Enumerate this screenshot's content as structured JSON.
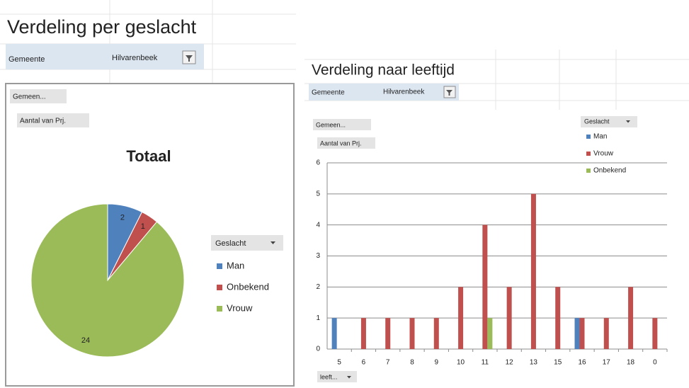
{
  "chart_data": [
    {
      "type": "pie",
      "sheet_title": "Verdeling per geslacht",
      "filter_label": "Gemeente",
      "filter_value": "Hilvarenbeek",
      "field_buttons": [
        "Gemeen...",
        "Aantal van Prj."
      ],
      "title": "Totaal",
      "legend_title": "Geslacht",
      "categories": [
        "Man",
        "Onbekend",
        "Vrouw"
      ],
      "values": [
        2,
        1,
        24
      ],
      "colors": [
        "#4f81bd",
        "#c0504d",
        "#9bbb59"
      ],
      "legend": "right"
    },
    {
      "type": "bar",
      "sheet_title": "Verdeling naar leeftijd",
      "filter_label": "Gemeente",
      "filter_value": "Hilvarenbeek",
      "field_buttons": [
        "Gemeen...",
        "Aantal van Prj."
      ],
      "axis_button": "leeft...",
      "legend_title": "Geslacht",
      "categories": [
        "5",
        "6",
        "7",
        "8",
        "9",
        "10",
        "11",
        "12",
        "13",
        "15",
        "16",
        "17",
        "18",
        "0"
      ],
      "series": [
        {
          "name": "Man",
          "color": "#4f81bd",
          "values": [
            1,
            null,
            null,
            null,
            null,
            null,
            null,
            null,
            null,
            null,
            1,
            null,
            null,
            null
          ]
        },
        {
          "name": "Vrouw",
          "color": "#c0504d",
          "values": [
            null,
            1,
            1,
            1,
            1,
            2,
            4,
            2,
            5,
            2,
            1,
            1,
            2,
            1
          ]
        },
        {
          "name": "Onbekend",
          "color": "#9bbb59",
          "values": [
            null,
            null,
            null,
            null,
            null,
            null,
            1,
            null,
            null,
            null,
            null,
            null,
            null,
            null
          ]
        }
      ],
      "ylim": [
        0,
        6
      ],
      "yticks": [
        0,
        1,
        2,
        3,
        4,
        5,
        6
      ],
      "grid": true,
      "legend": "top-right"
    }
  ]
}
